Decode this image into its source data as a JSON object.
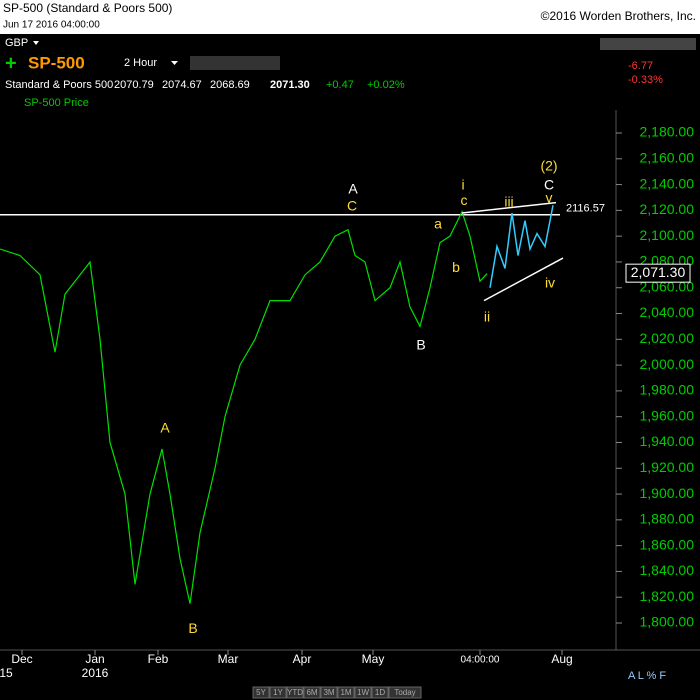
{
  "header": {
    "title": "SP-500 (Standard & Poors 500)",
    "date": "Jun 17 2016 04:00:00",
    "copyright": "©2016 Worden Brothers, Inc.",
    "currency": "GBP",
    "symbol": "SP-500",
    "interval": "2 Hour",
    "name": "Standard & Poors 500",
    "open": "2070.79",
    "high": "2074.67",
    "low": "2068.69",
    "close": "2071.30",
    "change": "+0.47",
    "change_pct": "+0.02%",
    "day_change": "-6.77",
    "day_change_pct": "-0.33%",
    "footer_buttons": [
      "5Y",
      "1Y",
      "YTD",
      "6M",
      "3M",
      "1M",
      "1W",
      "1D",
      "Today"
    ],
    "corner": "A L % F"
  },
  "chart_data": {
    "type": "line",
    "xlim": [
      0,
      610
    ],
    "ylim": [
      1800,
      2180
    ],
    "yticks": [
      {
        "value": 1800,
        "label": "1,800.00"
      },
      {
        "value": 1820,
        "label": "1,820.00"
      },
      {
        "value": 1840,
        "label": "1,840.00"
      },
      {
        "value": 1860,
        "label": "1,860.00"
      },
      {
        "value": 1880,
        "label": "1,880.00"
      },
      {
        "value": 1900,
        "label": "1,900.00"
      },
      {
        "value": 1920,
        "label": "1,920.00"
      },
      {
        "value": 1940,
        "label": "1,940.00"
      },
      {
        "value": 1960,
        "label": "1,960.00"
      },
      {
        "value": 1980,
        "label": "1,980.00"
      },
      {
        "value": 2000,
        "label": "2,000.00"
      },
      {
        "value": 2020,
        "label": "2,020.00"
      },
      {
        "value": 2040,
        "label": "2,040.00"
      },
      {
        "value": 2060,
        "label": "2,060.00"
      },
      {
        "value": 2080,
        "label": "2,080.00"
      },
      {
        "value": 2100,
        "label": "2,100.00"
      },
      {
        "value": 2120,
        "label": "2,120.00"
      },
      {
        "value": 2140,
        "label": "2,140.00"
      },
      {
        "value": 2160,
        "label": "2,160.00"
      },
      {
        "value": 2180,
        "label": "2,180.00"
      }
    ],
    "xticks": [
      {
        "value": 22,
        "label": "Dec"
      },
      {
        "value": 95,
        "label": "Jan"
      },
      {
        "value": 158,
        "label": "Feb"
      },
      {
        "value": 228,
        "label": "Mar"
      },
      {
        "value": 302,
        "label": "Apr"
      },
      {
        "value": 373,
        "label": "May"
      },
      {
        "value": 480,
        "label": "04:00:00"
      },
      {
        "value": 562,
        "label": "Aug"
      }
    ],
    "year_labels": [
      {
        "value": 6,
        "label": "15"
      },
      {
        "value": 95,
        "label": "2016"
      }
    ],
    "series": [
      {
        "name": "SP-500 Price",
        "color": "#00e000",
        "x": [
          0,
          20,
          40,
          55,
          65,
          80,
          90,
          100,
          110,
          125,
          135,
          150,
          162,
          170,
          180,
          190,
          200,
          215,
          225,
          240,
          255,
          270,
          290,
          305,
          320,
          335,
          348,
          355,
          365,
          375,
          390,
          400,
          410,
          420,
          430,
          440,
          450,
          462,
          470,
          480,
          487
        ],
        "values": [
          2090,
          2085,
          2070,
          2010,
          2055,
          2070,
          2080,
          2020,
          1940,
          1900,
          1830,
          1900,
          1935,
          1900,
          1850,
          1815,
          1870,
          1920,
          1960,
          2000,
          2020,
          2050,
          2050,
          2070,
          2080,
          2100,
          2105,
          2085,
          2080,
          2050,
          2060,
          2080,
          2045,
          2030,
          2060,
          2095,
          2100,
          2119,
          2100,
          2065,
          2071
        ]
      },
      {
        "color": "#33ccff",
        "x": [
          490,
          497,
          505,
          512,
          518,
          525,
          530,
          537,
          545,
          553
        ],
        "values": [
          2060,
          2092,
          2075,
          2118,
          2085,
          2112,
          2090,
          2102,
          2092,
          2124
        ]
      },
      {
        "color": "#ffffff",
        "x": [
          462,
          556
        ],
        "values": [
          2118,
          2126
        ]
      },
      {
        "color": "#ffffff",
        "x": [
          484,
          563
        ],
        "values": [
          2050,
          2083
        ]
      }
    ],
    "hline": {
      "value": 2116.57,
      "label": "2116.57"
    },
    "last_label": {
      "value": 2071.3,
      "label": "2,071.30"
    },
    "annotations": [
      {
        "text": "A",
        "x": 353,
        "y": 2136,
        "color": "#ffffff"
      },
      {
        "text": "C",
        "x": 352,
        "y": 2122.6,
        "color": "#ffdd33"
      },
      {
        "text": "a",
        "x": 438,
        "y": 2109,
        "color": "#ffdd33"
      },
      {
        "text": "i",
        "x": 463,
        "y": 2139,
        "color": "#ffdd33"
      },
      {
        "text": "c",
        "x": 464,
        "y": 2127,
        "color": "#ffdd33"
      },
      {
        "text": "b",
        "x": 456,
        "y": 2075,
        "color": "#ffdd33"
      },
      {
        "text": "ii",
        "x": 487,
        "y": 2036.5,
        "color": "#ffdd33"
      },
      {
        "text": "B",
        "x": 421,
        "y": 2014.8,
        "color": "#ffffff"
      },
      {
        "text": "iii",
        "x": 509,
        "y": 2125.7,
        "color": "#ffdd33"
      },
      {
        "text": "(2)",
        "x": 549,
        "y": 2153.6,
        "color": "#ffdd33"
      },
      {
        "text": "C",
        "x": 549,
        "y": 2139,
        "color": "#ffffff"
      },
      {
        "text": "v",
        "x": 549,
        "y": 2128.8,
        "color": "#ffdd33"
      },
      {
        "text": "iv",
        "x": 550,
        "y": 2063,
        "color": "#ffdd33"
      },
      {
        "text": "A",
        "x": 165,
        "y": 1950.5,
        "color": "#ffdd33"
      },
      {
        "text": "B",
        "x": 193,
        "y": 1795,
        "color": "#ffdd33"
      }
    ]
  }
}
